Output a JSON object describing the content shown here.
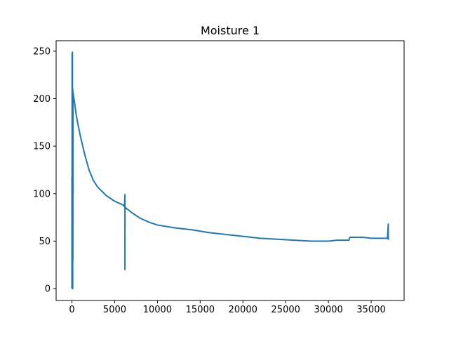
{
  "chart_data": {
    "type": "line",
    "title": "Moisture 1",
    "xlabel": "",
    "ylabel": "",
    "xlim": [
      -1850,
      38850
    ],
    "ylim": [
      -12.5,
      261
    ],
    "x_ticks": [
      0,
      5000,
      10000,
      15000,
      20000,
      25000,
      30000,
      35000
    ],
    "y_ticks": [
      0,
      50,
      100,
      150,
      200,
      250
    ],
    "grid": false,
    "legend": "none",
    "color": "#1f77b4",
    "series": [
      {
        "x": [
          0,
          0,
          10,
          20,
          30,
          40,
          50,
          60,
          70,
          80,
          90,
          100,
          110,
          120,
          130,
          100,
          200,
          300,
          400,
          500,
          700,
          1000,
          1500,
          2000,
          2500,
          3000,
          4000,
          5000,
          6000,
          6150,
          6200,
          6200,
          6210,
          6220,
          6230,
          6240,
          6300,
          7000,
          8000,
          9000,
          10000,
          12000,
          14000,
          16000,
          18000,
          20000,
          22000,
          24000,
          26000,
          28000,
          30000,
          31000,
          32000,
          32400,
          32500,
          33000,
          34000,
          35000,
          36000,
          36900,
          37000,
          37000,
          37050
        ],
        "y": [
          0,
          118,
          5,
          248,
          10,
          200,
          2,
          249,
          15,
          180,
          0,
          210,
          30,
          205,
          100,
          208,
          202,
          196,
          190,
          183,
          173,
          160,
          141,
          125,
          114,
          107,
          98,
          92,
          88,
          86,
          99,
          20,
          86,
          85,
          86,
          84,
          85,
          80,
          74,
          70,
          67,
          64,
          62,
          59,
          57,
          55,
          53,
          52,
          51,
          50,
          50,
          51,
          51,
          51,
          54,
          54,
          54,
          53,
          53,
          53,
          68,
          52,
          53
        ]
      }
    ]
  }
}
